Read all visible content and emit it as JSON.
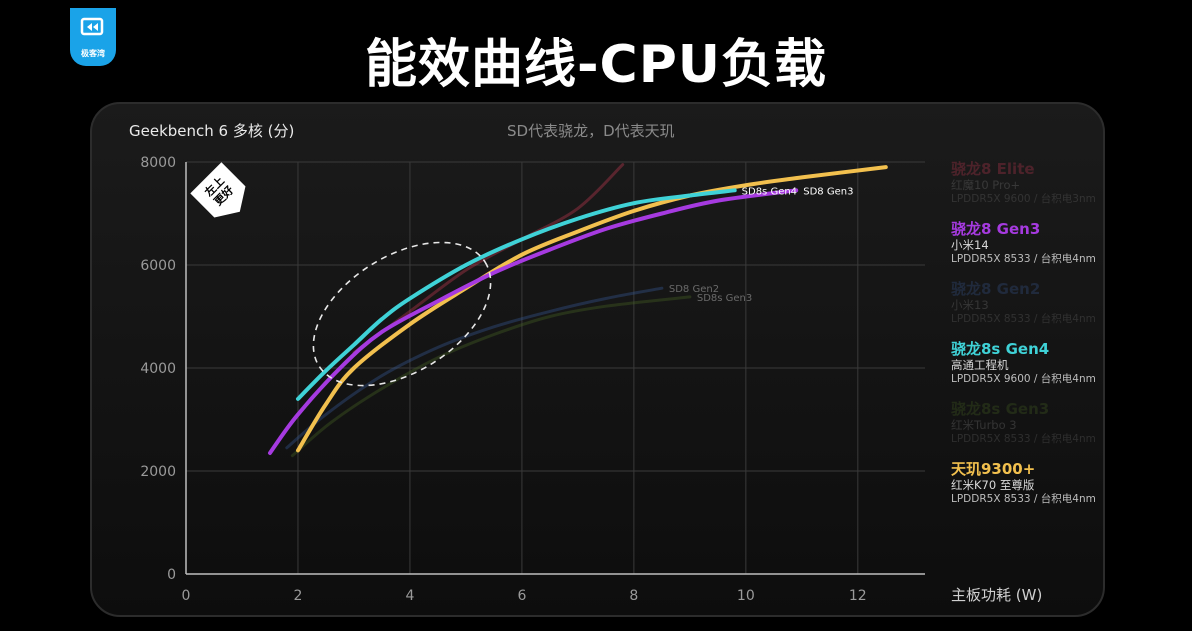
{
  "brand": {
    "logo_text": "极客湾"
  },
  "page_title": "能效曲线-CPU负载",
  "chart_data": {
    "type": "line",
    "title": "Geekbench 6  多核 (分)",
    "subtitle": "SD代表骁龙，D代表天玑",
    "xlabel": "主板功耗 (W)",
    "ylabel": "Geekbench 6  多核 (分)",
    "xlim": [
      0,
      13.2
    ],
    "ylim": [
      0,
      8000
    ],
    "xticks": [
      "0",
      "2",
      "4",
      "6",
      "8",
      "10",
      "12"
    ],
    "yticks": [
      "0",
      "2000",
      "4000",
      "6000",
      "8000"
    ],
    "badge": "左上更好",
    "series": [
      {
        "name": "骁龙8 Elite",
        "device": "红魔10 Pro+",
        "memory": "LPDDR5X 9600 / 台积电3nm",
        "color": "#d23c56",
        "dim": true,
        "label": "",
        "points": [
          [
            3.0,
            4300
          ],
          [
            4.0,
            5100
          ],
          [
            5.0,
            5900
          ],
          [
            6.0,
            6500
          ],
          [
            7.0,
            7100
          ],
          [
            7.8,
            7950
          ]
        ]
      },
      {
        "name": "骁龙8 Gen3",
        "device": "小米14",
        "memory": "LPDDR5X 8533 / 台积电4nm",
        "color": "#a63ae0",
        "dim": false,
        "label": "SD8 Gen3",
        "points": [
          [
            1.5,
            2350
          ],
          [
            2.0,
            3100
          ],
          [
            2.8,
            4050
          ],
          [
            3.5,
            4700
          ],
          [
            4.5,
            5300
          ],
          [
            5.5,
            5850
          ],
          [
            6.5,
            6300
          ],
          [
            7.5,
            6700
          ],
          [
            8.5,
            7000
          ],
          [
            9.5,
            7250
          ],
          [
            10.9,
            7450
          ]
        ]
      },
      {
        "name": "骁龙8 Gen2",
        "device": "小米13",
        "memory": "LPDDR5X 8533 / 台积电4nm",
        "color": "#3a5ea0",
        "dim": true,
        "label": "SD8 Gen2",
        "points": [
          [
            1.8,
            2450
          ],
          [
            2.5,
            3100
          ],
          [
            3.5,
            3850
          ],
          [
            4.5,
            4400
          ],
          [
            5.5,
            4800
          ],
          [
            6.5,
            5100
          ],
          [
            7.5,
            5350
          ],
          [
            8.5,
            5550
          ]
        ]
      },
      {
        "name": "骁龙8s Gen4",
        "device": "高通工程机",
        "memory": "LPDDR5X 9600 / 台积电4nm",
        "color": "#3fd2d7",
        "dim": false,
        "label": "SD8s Gen4",
        "points": [
          [
            2.0,
            3400
          ],
          [
            2.5,
            3950
          ],
          [
            3.0,
            4450
          ],
          [
            3.5,
            4950
          ],
          [
            4.0,
            5350
          ],
          [
            5.0,
            6000
          ],
          [
            6.0,
            6500
          ],
          [
            7.0,
            6900
          ],
          [
            8.0,
            7200
          ],
          [
            9.0,
            7350
          ],
          [
            9.8,
            7450
          ]
        ]
      },
      {
        "name": "骁龙8s Gen3",
        "device": "红米Turbo 3",
        "memory": "LPDDR5X 8533 / 台积电4nm",
        "color": "#4b6b24",
        "dim": true,
        "label": "SD8s Gen3",
        "points": [
          [
            1.9,
            2300
          ],
          [
            2.6,
            2950
          ],
          [
            3.5,
            3600
          ],
          [
            4.5,
            4200
          ],
          [
            5.5,
            4650
          ],
          [
            6.5,
            5000
          ],
          [
            7.5,
            5200
          ],
          [
            9.0,
            5380
          ]
        ]
      },
      {
        "name": "天玑9300+",
        "device": "红米K70 至尊版",
        "memory": "LPDDR5X 8533 / 台积电4nm",
        "color": "#f2c04e",
        "dim": false,
        "label": "",
        "points": [
          [
            2.0,
            2400
          ],
          [
            2.5,
            3300
          ],
          [
            3.0,
            4000
          ],
          [
            4.0,
            4850
          ],
          [
            5.0,
            5550
          ],
          [
            6.0,
            6200
          ],
          [
            7.0,
            6650
          ],
          [
            8.0,
            7050
          ],
          [
            9.0,
            7350
          ],
          [
            10.0,
            7550
          ],
          [
            11.0,
            7700
          ],
          [
            12.5,
            7900
          ]
        ]
      }
    ]
  }
}
